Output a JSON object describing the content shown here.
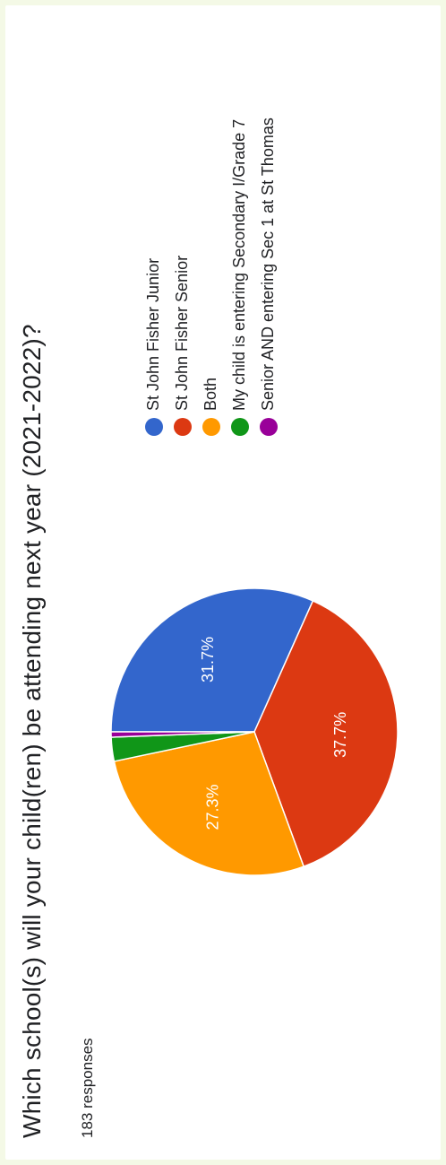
{
  "question": {
    "title": "Which school(s) will your child(ren) be attending next year (2021-2022)?",
    "responses": "183 responses"
  },
  "chart_data": {
    "type": "pie",
    "categories": [
      "St John Fisher Junior",
      "St John Fisher Senior",
      "Both",
      "My child is entering Secondary I/Grade 7",
      "Senior AND entering Sec 1 at St Thomas"
    ],
    "values": [
      31.7,
      37.7,
      27.3,
      2.7,
      0.6
    ],
    "slice_labels": [
      "31.7%",
      "37.7%",
      "27.3%",
      "",
      ""
    ],
    "colors": [
      "#3366cc",
      "#dc3912",
      "#ff9900",
      "#109618",
      "#990099"
    ],
    "legend_placement": "right"
  }
}
